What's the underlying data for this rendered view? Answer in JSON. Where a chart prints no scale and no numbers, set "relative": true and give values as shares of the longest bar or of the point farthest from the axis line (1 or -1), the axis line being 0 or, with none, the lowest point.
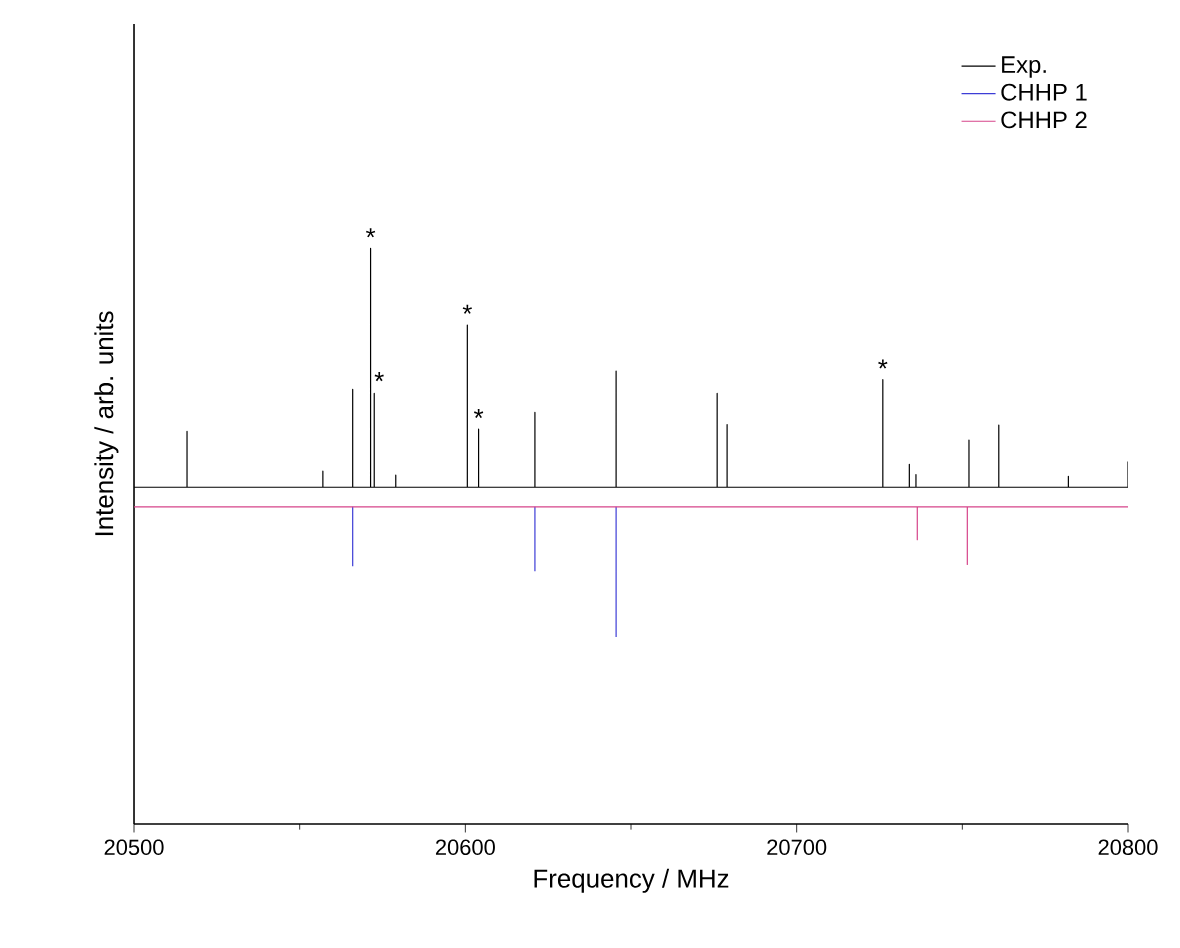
{
  "chart_data": {
    "type": "line",
    "relative": true,
    "xlabel": "Frequency / MHz",
    "ylabel": "Intensity / arb. units",
    "xlim": [
      20500,
      20800
    ],
    "xticks": [
      20500,
      20600,
      20700,
      20800
    ],
    "legend": "top right",
    "grid": false,
    "marker": "none",
    "line_style": "solid",
    "series": [
      {
        "name": "Exp.",
        "color": "#000000",
        "x": [
          20500,
          20516,
          20516,
          20516,
          20557,
          20557,
          20557,
          20566,
          20566,
          20566,
          20571.4,
          20571.4,
          20571.4,
          20572.5,
          20572.5,
          20572.5,
          20579,
          20579,
          20579,
          20600.6,
          20600.6,
          20600.6,
          20604,
          20604,
          20604,
          20621,
          20621,
          20621,
          20645.5,
          20645.5,
          20645.5,
          20676,
          20676,
          20676,
          20679,
          20679,
          20679,
          20726,
          20726,
          20726,
          20734,
          20734,
          20734,
          20736,
          20736,
          20736,
          20752,
          20752,
          20752,
          20761,
          20761,
          20761,
          20782,
          20782,
          20782,
          20800,
          20800
        ],
        "values": [
          0.585,
          0.585,
          0.682,
          0.585,
          0.585,
          0.613,
          0.585,
          0.585,
          0.755,
          0.585,
          0.585,
          1.0,
          0.585,
          0.585,
          0.748,
          0.585,
          0.585,
          0.606,
          0.585,
          0.585,
          0.867,
          0.585,
          0.585,
          0.686,
          0.585,
          0.585,
          0.715,
          0.585,
          0.585,
          0.787,
          0.585,
          0.585,
          0.748,
          0.585,
          0.585,
          0.694,
          0.585,
          0.585,
          0.772,
          0.585,
          0.585,
          0.625,
          0.585,
          0.585,
          0.607,
          0.585,
          0.585,
          0.667,
          0.585,
          0.585,
          0.693,
          0.585,
          0.585,
          0.604,
          0.585,
          0.585,
          0.63
        ]
      },
      {
        "name": "CHHP 1",
        "color": "#3d3dd6",
        "x": [
          20566,
          20566,
          20566.5,
          20621,
          20621,
          20621.5,
          20645.5,
          20645.5
        ],
        "values": [
          0.551,
          0.448,
          null,
          0.551,
          0.439,
          null,
          0.551,
          0.325
        ]
      },
      {
        "name": "CHHP 2",
        "color": "#d6448a",
        "x": [
          20500,
          20736.4,
          20736.4,
          20736.4,
          20751.5,
          20751.5,
          20751.5,
          20800
        ],
        "values": [
          0.551,
          0.551,
          0.494,
          0.551,
          0.551,
          0.451,
          0.551,
          0.551
        ]
      }
    ],
    "annotations": [
      {
        "text": "*",
        "x": 20571.4,
        "y": 1.0
      },
      {
        "text": "*",
        "x": 20574,
        "y": 0.75
      },
      {
        "text": "*",
        "x": 20600.6,
        "y": 0.867
      },
      {
        "text": "*",
        "x": 20604,
        "y": 0.686
      },
      {
        "text": "*",
        "x": 20726,
        "y": 0.772
      }
    ]
  }
}
